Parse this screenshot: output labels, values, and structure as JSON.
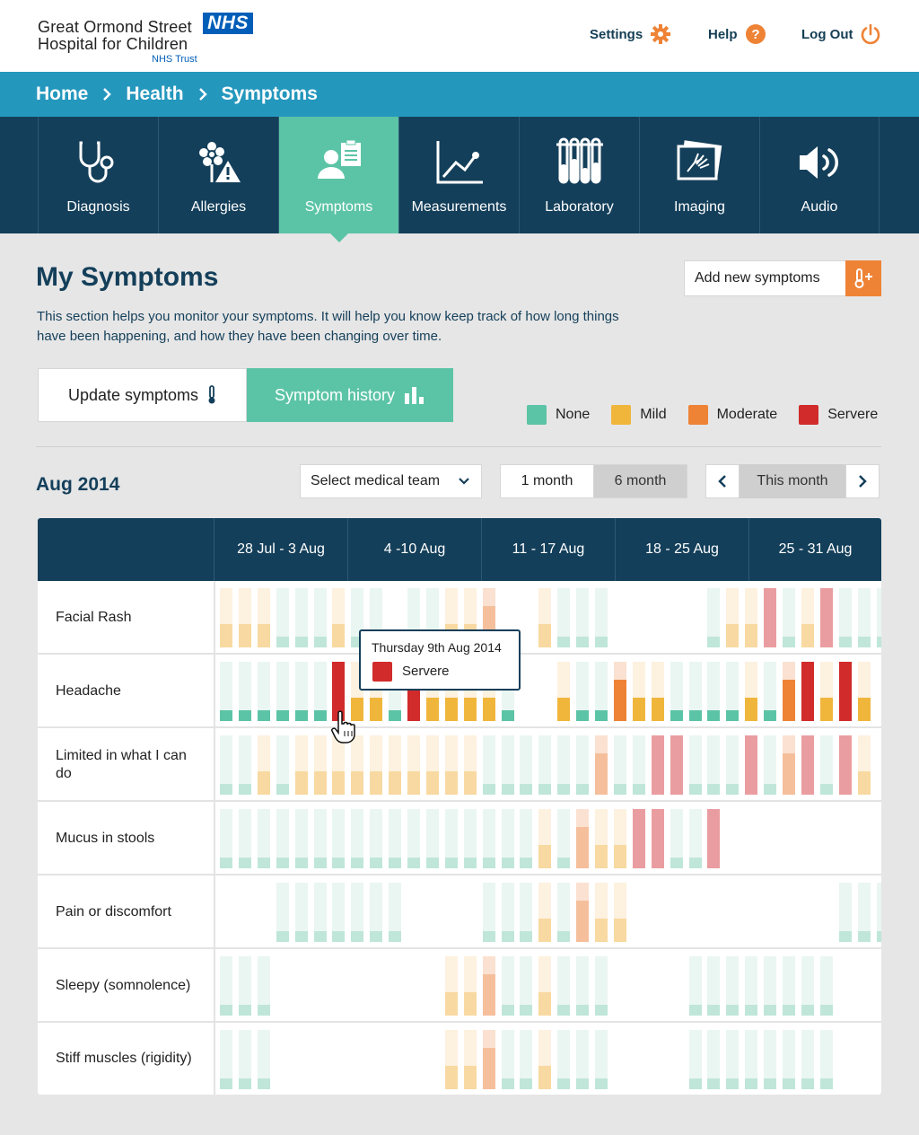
{
  "header": {
    "logo_line1": "Great Ormond Street",
    "logo_line2": "Hospital for Children",
    "logo_nhs": "NHS",
    "logo_trust": "NHS Trust",
    "settings_label": "Settings",
    "help_label": "Help",
    "logout_label": "Log Out"
  },
  "breadcrumb": [
    "Home",
    "Health",
    "Symptoms"
  ],
  "tabs": [
    {
      "label": "Diagnosis",
      "icon": "stethoscope-icon"
    },
    {
      "label": "Allergies",
      "icon": "allergy-warning-icon"
    },
    {
      "label": "Symptoms",
      "icon": "patient-clipboard-icon",
      "active": true
    },
    {
      "label": "Measurements",
      "icon": "line-chart-icon"
    },
    {
      "label": "Laboratory",
      "icon": "test-tubes-icon"
    },
    {
      "label": "Imaging",
      "icon": "xray-image-icon"
    },
    {
      "label": "Audio",
      "icon": "speaker-icon"
    }
  ],
  "main": {
    "title": "My Symptoms",
    "description": "This section helps you monitor your symptoms. It will help you know keep track of how long things have been happening, and how they have been changing over time.",
    "add_button": "Add new symptoms",
    "update_tab": "Update symptoms",
    "history_tab": "Symptom history"
  },
  "legend": [
    {
      "label": "None",
      "color": "#5cc4a6"
    },
    {
      "label": "Mild",
      "color": "#f0b63c"
    },
    {
      "label": "Moderate",
      "color": "#ee8336"
    },
    {
      "label": "Servere",
      "color": "#d12b2b"
    }
  ],
  "controls": {
    "month_title": "Aug 2014",
    "team_select": "Select medical team",
    "range_1": "1 month",
    "range_6": "6 month",
    "pager_label": "This month"
  },
  "chart_data": {
    "type": "heatmap",
    "x": [
      "28 Jul - 3 Aug",
      "4 -10 Aug",
      "11 - 17 Aug",
      "18 - 25 Aug",
      "25 - 31 Aug"
    ],
    "levels": [
      "None",
      "Mild",
      "Moderate",
      "Servere"
    ],
    "level_colors": [
      "#5cc4a6",
      "#f0b63c",
      "#ee8336",
      "#d12b2b"
    ],
    "rows": [
      {
        "name": "Facial Rash",
        "values": [
          1,
          1,
          1,
          0,
          0,
          0,
          1,
          0,
          0,
          null,
          0,
          0,
          1,
          1,
          2,
          null,
          null,
          1,
          0,
          0,
          0,
          null,
          null,
          null,
          null,
          null,
          0,
          1,
          1,
          3,
          0,
          1,
          3,
          0,
          0,
          0
        ]
      },
      {
        "name": "Headache",
        "values": [
          0,
          0,
          0,
          0,
          0,
          0,
          3,
          1,
          1,
          0,
          3,
          1,
          1,
          1,
          1,
          0,
          null,
          null,
          1,
          0,
          0,
          2,
          1,
          1,
          0,
          0,
          0,
          0,
          1,
          0,
          2,
          3,
          1,
          3,
          1,
          null
        ]
      },
      {
        "name": "Limited in what I can do",
        "values": [
          0,
          0,
          1,
          0,
          1,
          1,
          1,
          1,
          1,
          1,
          1,
          1,
          1,
          1,
          0,
          0,
          0,
          0,
          0,
          0,
          2,
          0,
          0,
          3,
          3,
          0,
          0,
          0,
          3,
          0,
          2,
          3,
          0,
          3,
          1,
          null
        ]
      },
      {
        "name": "Mucus in stools",
        "values": [
          0,
          0,
          0,
          0,
          0,
          0,
          0,
          0,
          0,
          0,
          0,
          0,
          0,
          0,
          0,
          0,
          0,
          1,
          0,
          2,
          1,
          1,
          3,
          3,
          0,
          0,
          3,
          null,
          null,
          null,
          null,
          null,
          null,
          null,
          null,
          null
        ]
      },
      {
        "name": "Pain or discomfort",
        "values": [
          null,
          null,
          null,
          0,
          0,
          0,
          0,
          0,
          0,
          0,
          null,
          null,
          null,
          null,
          0,
          0,
          0,
          1,
          0,
          2,
          1,
          1,
          null,
          null,
          null,
          null,
          null,
          null,
          null,
          null,
          null,
          null,
          null,
          0,
          0,
          0
        ]
      },
      {
        "name": "Sleepy (somnolence)",
        "values": [
          0,
          0,
          0,
          null,
          null,
          null,
          null,
          null,
          null,
          null,
          null,
          null,
          1,
          1,
          2,
          0,
          0,
          1,
          0,
          0,
          0,
          null,
          null,
          null,
          null,
          0,
          0,
          0,
          0,
          0,
          0,
          0,
          0,
          null,
          null,
          null
        ]
      },
      {
        "name": "Stiff muscles (rigidity)",
        "values": [
          0,
          0,
          0,
          null,
          null,
          null,
          null,
          null,
          null,
          null,
          null,
          null,
          1,
          1,
          2,
          0,
          0,
          1,
          0,
          0,
          0,
          null,
          null,
          null,
          null,
          0,
          0,
          0,
          0,
          0,
          0,
          0,
          0,
          null,
          null,
          null
        ]
      }
    ],
    "tooltip": {
      "date": "Thursday 9th Aug 2014",
      "value": "Servere"
    }
  }
}
